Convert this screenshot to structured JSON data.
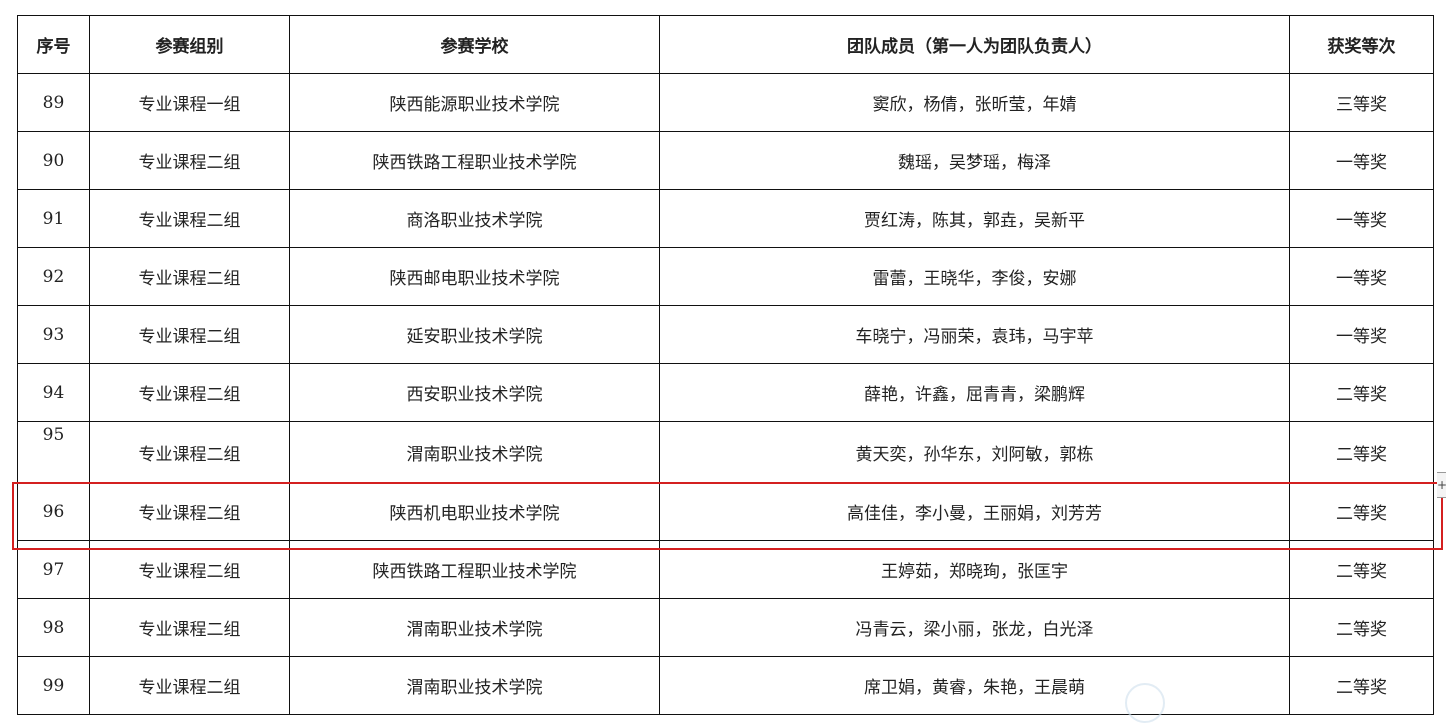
{
  "headers": [
    "序号",
    "参赛组别",
    "参赛学校",
    "团队成员（第一人为团队负责人）",
    "获奖等次"
  ],
  "rows": [
    {
      "no": "89",
      "group": "专业课程一组",
      "school": "陕西能源职业技术学院",
      "members": "窦欣，杨倩，张昕莹，年婧",
      "award": "三等奖"
    },
    {
      "no": "90",
      "group": "专业课程二组",
      "school": "陕西铁路工程职业技术学院",
      "members": "魏瑶，吴梦瑶，梅泽",
      "award": "一等奖"
    },
    {
      "no": "91",
      "group": "专业课程二组",
      "school": "商洛职业技术学院",
      "members": "贾红涛，陈其，郭垚，吴新平",
      "award": "一等奖"
    },
    {
      "no": "92",
      "group": "专业课程二组",
      "school": "陕西邮电职业技术学院",
      "members": "雷蕾，王晓华，李俊，安娜",
      "award": "一等奖"
    },
    {
      "no": "93",
      "group": "专业课程二组",
      "school": "延安职业技术学院",
      "members": "车晓宁，冯丽荣，袁玮，马宇苹",
      "award": "一等奖"
    },
    {
      "no": "94",
      "group": "专业课程二组",
      "school": "西安职业技术学院",
      "members": "薛艳，许鑫，屈青青，梁鹏辉",
      "award": "二等奖"
    },
    {
      "no": "95",
      "group": "专业课程二组",
      "school": "渭南职业技术学院",
      "members": "黄天奕，孙华东，刘阿敏，郭栋",
      "award": "二等奖"
    },
    {
      "no": "96",
      "group": "专业课程二组",
      "school": "陕西机电职业技术学院",
      "members": "高佳佳，李小曼，王丽娟，刘芳芳",
      "award": "二等奖"
    },
    {
      "no": "97",
      "group": "专业课程二组",
      "school": "陕西铁路工程职业技术学院",
      "members": "王婷茹，郑晓珣，张匡宇",
      "award": "二等奖"
    },
    {
      "no": "98",
      "group": "专业课程二组",
      "school": "渭南职业技术学院",
      "members": "冯青云，梁小丽，张龙，白光泽",
      "award": "二等奖"
    },
    {
      "no": "99",
      "group": "专业课程二组",
      "school": "渭南职业技术学院",
      "members": "席卫娟，黄睿，朱艳，王晨萌",
      "award": "二等奖"
    }
  ],
  "selection_color": "#d42020",
  "handle_icon": "plus-icon",
  "handle_symbol": "+"
}
